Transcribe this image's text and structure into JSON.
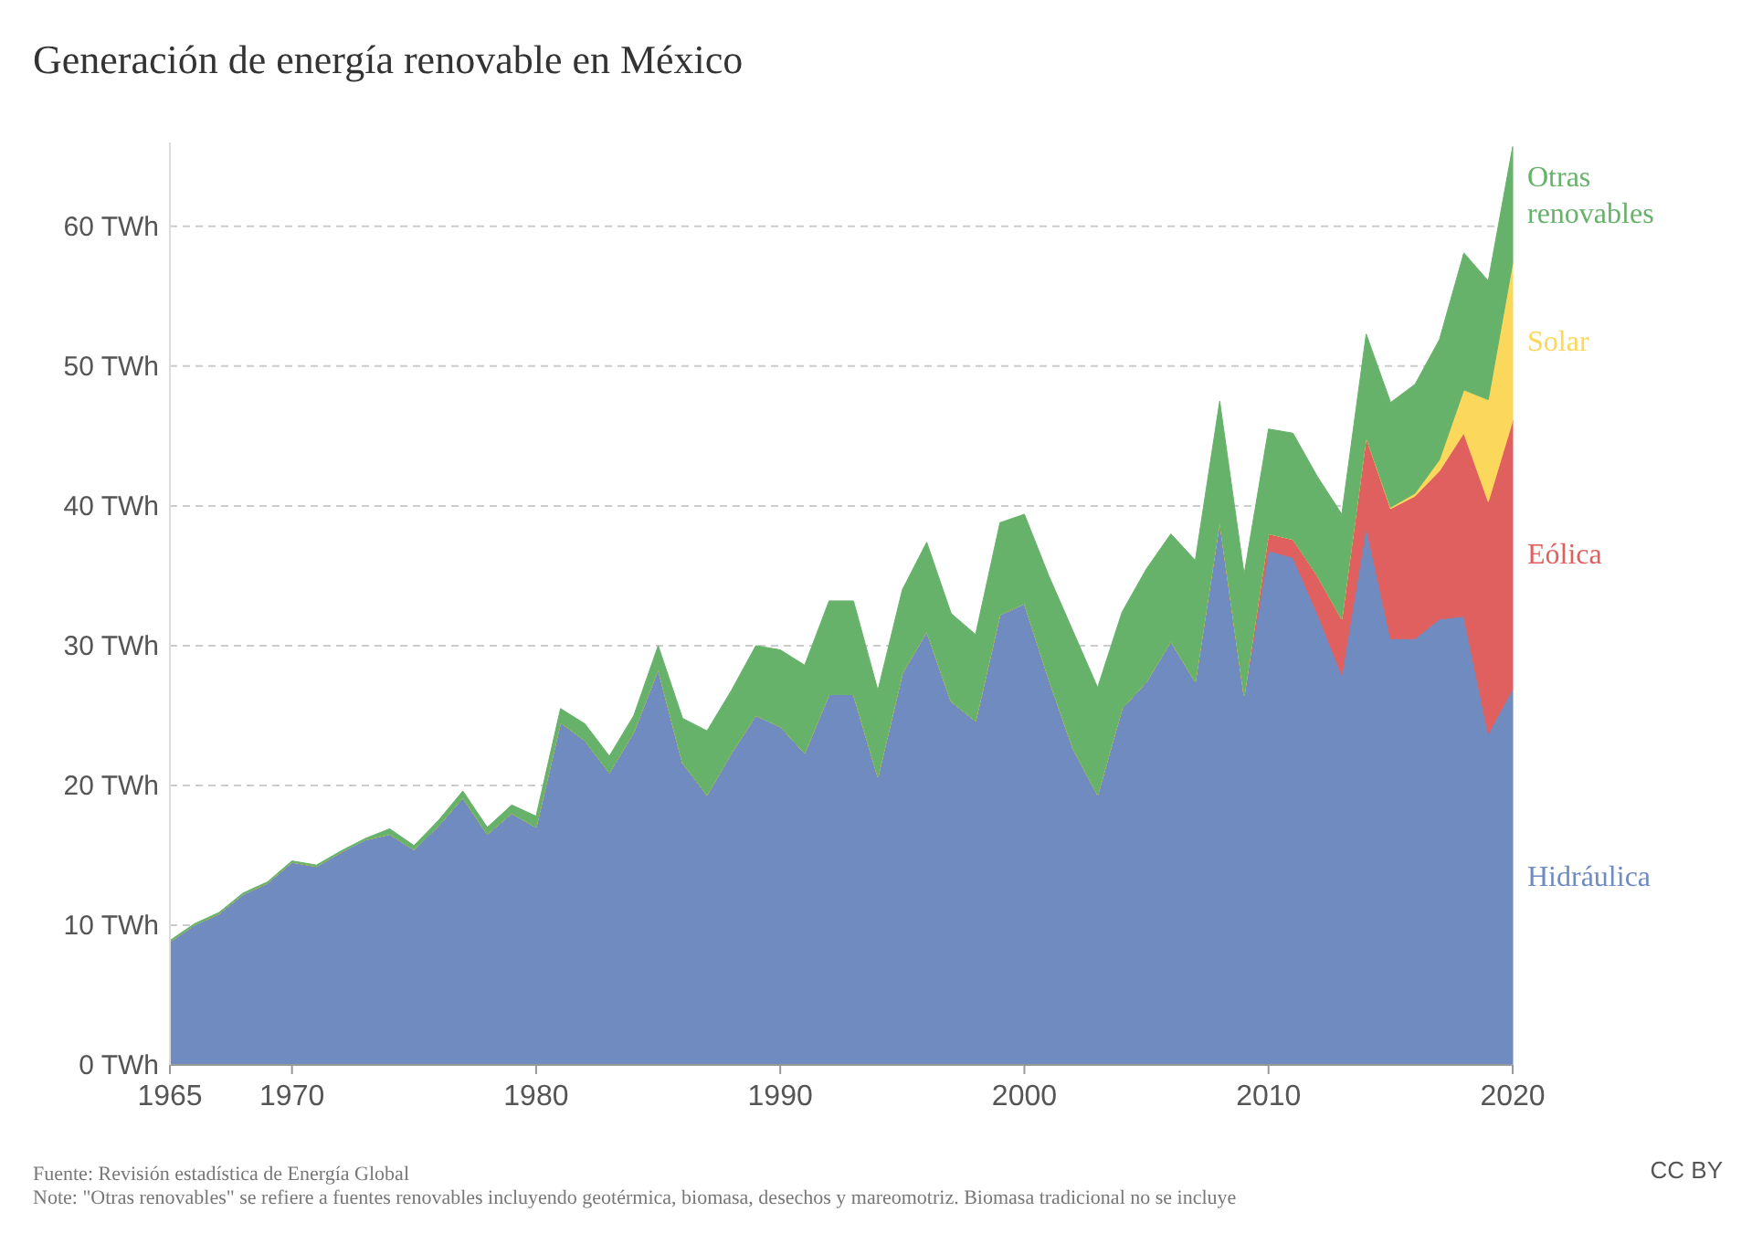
{
  "chart_data": {
    "type": "area",
    "stacked": true,
    "title": "Generación de energía renovable en México",
    "x": [
      1965,
      1966,
      1967,
      1968,
      1969,
      1970,
      1971,
      1972,
      1973,
      1974,
      1975,
      1976,
      1977,
      1978,
      1979,
      1980,
      1981,
      1982,
      1983,
      1984,
      1985,
      1986,
      1987,
      1988,
      1989,
      1990,
      1991,
      1992,
      1993,
      1994,
      1995,
      1996,
      1997,
      1998,
      1999,
      2000,
      2001,
      2002,
      2003,
      2004,
      2005,
      2006,
      2007,
      2008,
      2009,
      2010,
      2011,
      2012,
      2013,
      2014,
      2015,
      2016,
      2017,
      2018,
      2019,
      2020
    ],
    "series": [
      {
        "name": "Hidráulica",
        "color": "#6f8bc0",
        "values": [
          8.8,
          10.0,
          10.8,
          12.2,
          13.0,
          14.5,
          14.2,
          15.2,
          16.1,
          16.5,
          15.4,
          17.1,
          19.1,
          16.5,
          18.0,
          17.0,
          24.5,
          23.2,
          20.9,
          23.8,
          28.3,
          21.6,
          19.3,
          22.3,
          25.0,
          24.2,
          22.3,
          26.5,
          26.5,
          20.6,
          28.0,
          31.0,
          26.0,
          24.6,
          32.2,
          33.0,
          27.6,
          22.6,
          19.3,
          25.5,
          27.4,
          30.3,
          27.4,
          38.9,
          26.4,
          36.8,
          36.3,
          32.3,
          27.9,
          38.5,
          30.5,
          30.5,
          31.9,
          32.1,
          23.7,
          26.9
        ]
      },
      {
        "name": "Eólica",
        "color": "#e0605f",
        "values": [
          0,
          0,
          0,
          0,
          0,
          0,
          0,
          0,
          0,
          0,
          0,
          0,
          0,
          0,
          0,
          0,
          0,
          0,
          0,
          0,
          0,
          0,
          0,
          0,
          0,
          0,
          0,
          0,
          0,
          0,
          0,
          0,
          0,
          0,
          0,
          0,
          0,
          0,
          0,
          0,
          0,
          0,
          0,
          0,
          0,
          1.2,
          1.3,
          2.7,
          4.0,
          6.4,
          9.3,
          10.2,
          10.6,
          13.1,
          16.6,
          19.2
        ]
      },
      {
        "name": "Solar",
        "color": "#fbd75b",
        "values": [
          0,
          0,
          0,
          0,
          0,
          0,
          0,
          0,
          0,
          0,
          0,
          0,
          0,
          0,
          0,
          0,
          0,
          0,
          0,
          0,
          0,
          0,
          0,
          0,
          0,
          0,
          0,
          0,
          0,
          0,
          0,
          0,
          0,
          0,
          0,
          0,
          0,
          0,
          0,
          0,
          0,
          0,
          0,
          0,
          0,
          0,
          0,
          0,
          0,
          0,
          0.1,
          0.2,
          0.8,
          3.1,
          7.3,
          11.3
        ]
      },
      {
        "name": "Otras renovables",
        "color": "#67b26b",
        "values": [
          0.1,
          0.1,
          0.1,
          0.1,
          0.1,
          0.1,
          0.1,
          0.1,
          0.1,
          0.4,
          0.3,
          0.4,
          0.5,
          0.5,
          0.6,
          0.8,
          1.0,
          1.2,
          1.2,
          1.2,
          1.7,
          3.2,
          4.6,
          4.5,
          5.0,
          5.5,
          6.3,
          6.7,
          6.7,
          6.2,
          6.0,
          6.4,
          6.3,
          6.2,
          6.6,
          6.4,
          7.4,
          8.4,
          7.7,
          6.9,
          8.1,
          7.7,
          8.7,
          8.6,
          8.7,
          7.5,
          7.6,
          7.1,
          7.5,
          7.4,
          7.5,
          7.8,
          8.6,
          9.8,
          8.5,
          8.3
        ]
      }
    ],
    "xlim": [
      1965,
      2020
    ],
    "xticks": [
      1965,
      1970,
      1980,
      1990,
      2000,
      2010,
      2020
    ],
    "ylim": [
      0,
      66
    ],
    "yticks": [
      {
        "value": 0,
        "label": "0 TWh"
      },
      {
        "value": 10,
        "label": "10 TWh"
      },
      {
        "value": 20,
        "label": "20 TWh"
      },
      {
        "value": 30,
        "label": "30 TWh"
      },
      {
        "value": 40,
        "label": "40 TWh"
      },
      {
        "value": 50,
        "label": "50 TWh"
      },
      {
        "value": 60,
        "label": "60 TWh"
      }
    ],
    "grid": "y",
    "annotations": [
      "Fuente: Revisión estadística de Energía Global",
      "CC BY",
      "Note: \"Otras renovables\" se refiere a fuentes renovables incluyendo geotérmica, biomasa, desechos y mareomotriz. Biomasa tradicional no se incluye"
    ]
  }
}
